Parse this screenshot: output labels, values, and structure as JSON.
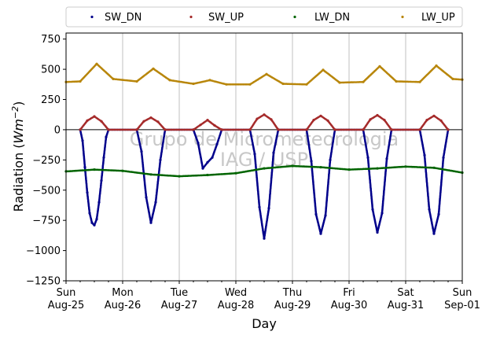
{
  "chart_data": {
    "type": "scatter",
    "title": "",
    "xlabel": "Day",
    "ylabel_prefix": "Radiation (",
    "ylabel_unit_base": "Wm",
    "ylabel_unit_exp": "−2",
    "ylabel_suffix": ")",
    "ylim": [
      -1250,
      800
    ],
    "yticks": [
      750,
      500,
      250,
      0,
      -250,
      -500,
      -750,
      -1000,
      -1250
    ],
    "ytick_labels": [
      "750",
      "500",
      "250",
      "0",
      "−250",
      "−500",
      "−750",
      "−1000",
      "−1250"
    ],
    "xlim": [
      "2024-08-25",
      "2024-09-01"
    ],
    "xticks": [
      {
        "day": "Sun",
        "date": "Aug-25"
      },
      {
        "day": "Mon",
        "date": "Aug-26"
      },
      {
        "day": "Tue",
        "date": "Aug-27"
      },
      {
        "day": "Wed",
        "date": "Aug-28"
      },
      {
        "day": "Thu",
        "date": "Aug-29"
      },
      {
        "day": "Fri",
        "date": "Aug-30"
      },
      {
        "day": "Sat",
        "date": "Aug-31"
      },
      {
        "day": "Sun",
        "date": "Sep-01"
      }
    ],
    "grid": "vertical",
    "zero_line": true,
    "legend": {
      "placement": "top",
      "columns": 4
    },
    "watermark": [
      "Grupo de Micrometeorologia",
      "IAG / USP"
    ],
    "series": [
      {
        "name": "SW_DN",
        "color": "#00008b",
        "x": [
          "08-25 06:00",
          "08-25 07:00",
          "08-25 08:00",
          "08-25 09:00",
          "08-25 10:00",
          "08-25 11:00",
          "08-25 12:00",
          "08-25 13:00",
          "08-25 14:00",
          "08-25 15:00",
          "08-25 16:00",
          "08-25 17:00",
          "08-25 18:00",
          "08-26 06:00",
          "08-26 08:00",
          "08-26 10:00",
          "08-26 12:00",
          "08-26 14:00",
          "08-26 16:00",
          "08-26 18:00",
          "08-27 06:00",
          "08-27 08:00",
          "08-27 10:00",
          "08-27 12:00",
          "08-27 14:00",
          "08-27 16:00",
          "08-27 18:00",
          "08-28 06:00",
          "08-28 08:00",
          "08-28 10:00",
          "08-28 12:00",
          "08-28 14:00",
          "08-28 16:00",
          "08-28 18:00",
          "08-29 06:00",
          "08-29 08:00",
          "08-29 10:00",
          "08-29 12:00",
          "08-29 14:00",
          "08-29 16:00",
          "08-29 18:00",
          "08-30 06:00",
          "08-30 08:00",
          "08-30 10:00",
          "08-30 12:00",
          "08-30 14:00",
          "08-30 16:00",
          "08-30 18:00",
          "08-31 06:00",
          "08-31 08:00",
          "08-31 10:00",
          "08-31 12:00",
          "08-31 14:00",
          "08-31 16:00",
          "08-31 18:00"
        ],
        "y": [
          0,
          -90,
          -310,
          -520,
          -690,
          -770,
          -790,
          -740,
          -600,
          -420,
          -230,
          -60,
          0,
          0,
          -180,
          -560,
          -770,
          -600,
          -250,
          0,
          0,
          -110,
          -320,
          -270,
          -230,
          -120,
          0,
          0,
          -200,
          -640,
          -900,
          -650,
          -190,
          0,
          0,
          -260,
          -700,
          -860,
          -710,
          -250,
          0,
          0,
          -230,
          -660,
          -850,
          -690,
          -240,
          0,
          0,
          -210,
          -660,
          -860,
          -700,
          -230,
          0
        ]
      },
      {
        "name": "SW_UP",
        "color": "#a52a2a",
        "x": [
          "08-25 06:00",
          "08-25 09:00",
          "08-25 12:00",
          "08-25 15:00",
          "08-25 18:00",
          "08-26 06:00",
          "08-26 09:00",
          "08-26 12:00",
          "08-26 15:00",
          "08-26 18:00",
          "08-27 06:00",
          "08-27 09:00",
          "08-27 12:00",
          "08-27 15:00",
          "08-27 18:00",
          "08-28 06:00",
          "08-28 09:00",
          "08-28 12:00",
          "08-28 15:00",
          "08-28 18:00",
          "08-29 06:00",
          "08-29 09:00",
          "08-29 12:00",
          "08-29 15:00",
          "08-29 18:00",
          "08-30 06:00",
          "08-30 09:00",
          "08-30 12:00",
          "08-30 15:00",
          "08-30 18:00",
          "08-31 06:00",
          "08-31 09:00",
          "08-31 12:00",
          "08-31 15:00",
          "08-31 18:00"
        ],
        "y": [
          0,
          75,
          110,
          70,
          0,
          0,
          70,
          100,
          65,
          0,
          0,
          40,
          80,
          35,
          0,
          0,
          90,
          125,
          85,
          0,
          0,
          80,
          115,
          75,
          0,
          0,
          85,
          120,
          80,
          0,
          0,
          80,
          115,
          75,
          0
        ]
      },
      {
        "name": "LW_DN",
        "color": "#006400",
        "x": [
          "08-25 00:00",
          "08-25 12:00",
          "08-26 00:00",
          "08-26 12:00",
          "08-27 00:00",
          "08-27 12:00",
          "08-28 00:00",
          "08-28 12:00",
          "08-29 00:00",
          "08-29 12:00",
          "08-30 00:00",
          "08-30 12:00",
          "08-31 00:00",
          "08-31 12:00",
          "09-01 00:00"
        ],
        "y": [
          -345,
          -330,
          -340,
          -370,
          -385,
          -375,
          -360,
          -320,
          -300,
          -310,
          -330,
          -320,
          -305,
          -315,
          -355
        ]
      },
      {
        "name": "LW_UP",
        "color": "#b8860b",
        "x": [
          "08-25 00:00",
          "08-25 06:00",
          "08-25 13:00",
          "08-25 20:00",
          "08-26 06:00",
          "08-26 13:00",
          "08-26 20:00",
          "08-27 06:00",
          "08-27 13:00",
          "08-27 20:00",
          "08-28 06:00",
          "08-28 13:00",
          "08-28 20:00",
          "08-29 06:00",
          "08-29 13:00",
          "08-29 20:00",
          "08-30 06:00",
          "08-30 13:00",
          "08-30 20:00",
          "08-31 06:00",
          "08-31 13:00",
          "08-31 20:00",
          "09-01 00:00"
        ],
        "y": [
          395,
          400,
          545,
          420,
          400,
          505,
          410,
          380,
          410,
          375,
          375,
          460,
          380,
          375,
          495,
          390,
          395,
          525,
          400,
          395,
          530,
          420,
          415
        ]
      }
    ]
  }
}
